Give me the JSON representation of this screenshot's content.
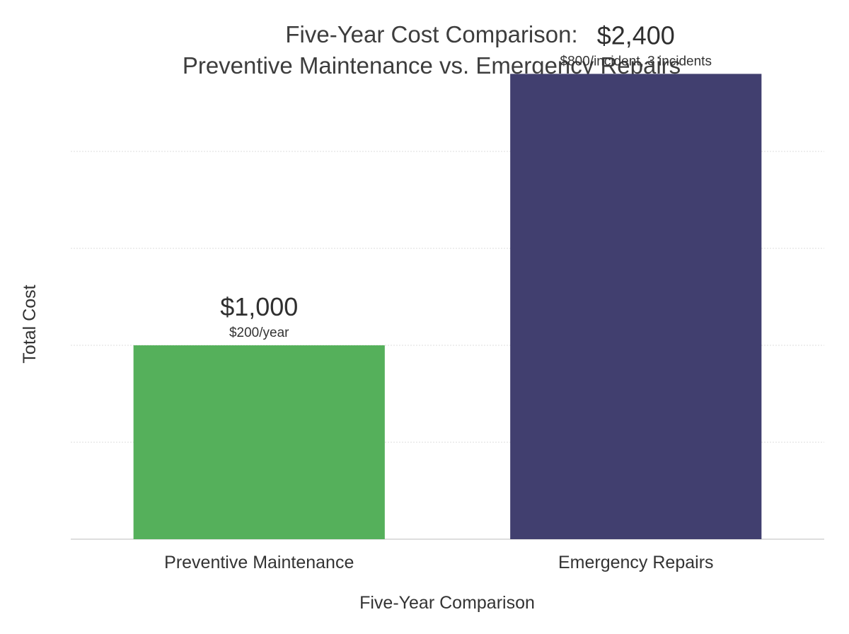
{
  "chart_data": {
    "type": "bar",
    "title_lines": [
      "Five-Year Cost Comparison:",
      "Preventive Maintenance vs. Emergency Repairs"
    ],
    "xlabel": "Five-Year Comparison",
    "ylabel": "Total Cost",
    "categories": [
      "Preventive Maintenance",
      "Emergency Repairs"
    ],
    "values": [
      1000,
      2400
    ],
    "value_labels": [
      "$1,000",
      "$2,400"
    ],
    "sub_labels": [
      "$200/year",
      "$800/incident, 3 incidents"
    ],
    "colors": [
      "#55b05b",
      "#413f6f"
    ],
    "ylim": [
      0,
      2500
    ],
    "grid": true,
    "grid_step": 500,
    "legend": "none"
  }
}
